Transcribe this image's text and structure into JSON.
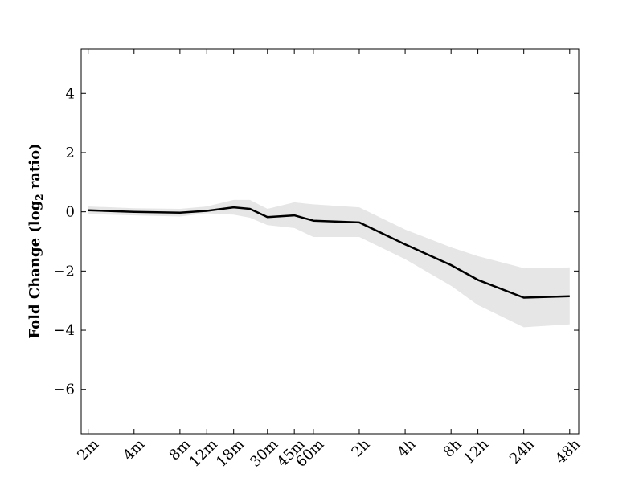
{
  "chart_data": {
    "type": "line",
    "title": "",
    "xlabel": "",
    "ylabel": "Fold Change (log",
    "ylabel_sub": "2",
    "ylabel_suffix": " ratio)",
    "ylim": [
      -7.5,
      5.5
    ],
    "yticks": [
      4,
      2,
      0,
      -2,
      -4,
      -6
    ],
    "ytick_labels": [
      "4",
      "2",
      "0",
      "−2",
      "−4",
      "−6"
    ],
    "categories": [
      "2m",
      "4m",
      "8m",
      "12m",
      "18m",
      "30m",
      "45m",
      "60m",
      "2h",
      "4h",
      "8h",
      "12h",
      "24h",
      "48h"
    ],
    "category_positions": [
      2,
      4,
      8,
      12,
      18,
      30,
      45,
      60,
      120,
      240,
      480,
      720,
      1440,
      2880
    ],
    "x_scale": "log",
    "series": [
      {
        "x": [
          2,
          4,
          8,
          12,
          18,
          23,
          30,
          45,
          60,
          120,
          240,
          480,
          720,
          1440,
          2880
        ],
        "y": [
          0.05,
          0.0,
          -0.03,
          0.03,
          0.15,
          0.1,
          -0.18,
          -0.12,
          -0.3,
          -0.36,
          -1.1,
          -1.8,
          -2.3,
          -2.9,
          -2.85
        ],
        "upper": [
          0.18,
          0.12,
          0.1,
          0.18,
          0.4,
          0.4,
          0.1,
          0.32,
          0.25,
          0.15,
          -0.6,
          -1.2,
          -1.5,
          -1.9,
          -1.88
        ],
        "lower": [
          -0.08,
          -0.12,
          -0.16,
          -0.05,
          -0.1,
          -0.2,
          -0.45,
          -0.55,
          -0.85,
          -0.85,
          -1.6,
          -2.5,
          -3.15,
          -3.9,
          -3.8
        ]
      }
    ],
    "line_color": "#000000",
    "band_color": "#e6e6e6",
    "grid": false,
    "legend": "none"
  }
}
